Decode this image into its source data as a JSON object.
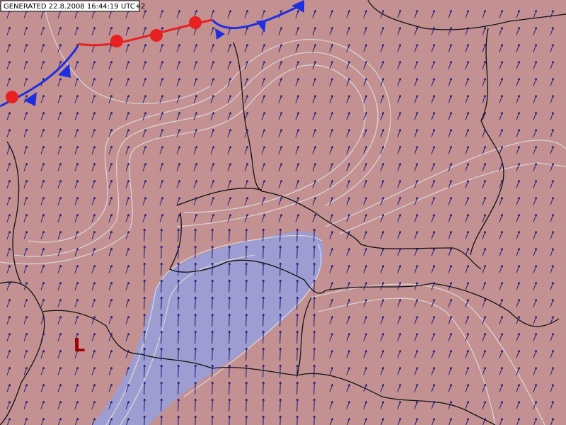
{
  "header": {
    "generated": "GENERATED 22.8.2008 16:44:19 UTC+2"
  },
  "labels": [
    {
      "text": "L"
    }
  ]
}
